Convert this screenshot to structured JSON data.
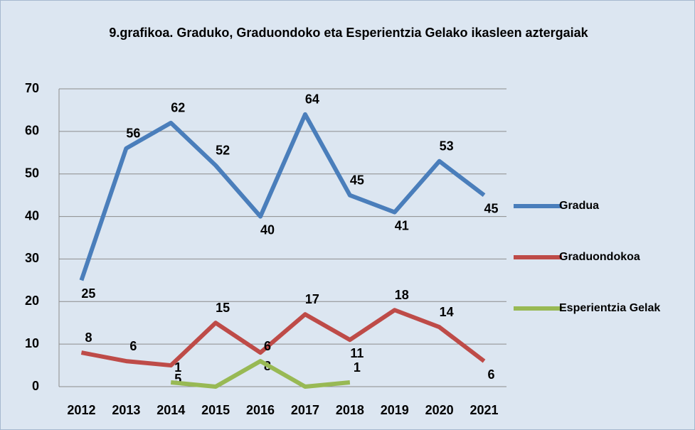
{
  "chart_data": {
    "type": "line",
    "title": "9.grafikoa. Graduko, Graduondoko eta Esperientzia Gelako ikasleen aztergaiak",
    "categories": [
      "2012",
      "2013",
      "2014",
      "2015",
      "2016",
      "2017",
      "2018",
      "2019",
      "2020",
      "2021"
    ],
    "series": [
      {
        "name": "Gradua",
        "color": "#4a7ebb",
        "values": [
          25,
          56,
          62,
          52,
          40,
          64,
          45,
          41,
          53,
          45
        ]
      },
      {
        "name": "Graduondokoa",
        "color": "#be4b48",
        "values": [
          8,
          6,
          5,
          15,
          8,
          17,
          11,
          18,
          14,
          6
        ]
      },
      {
        "name": "Esperientzia Gelak",
        "color": "#98b954",
        "values": [
          null,
          null,
          1,
          0,
          6,
          0,
          1,
          null,
          null,
          null
        ],
        "value_labels": [
          null,
          null,
          "1",
          null,
          "6",
          null,
          "1",
          null,
          null,
          null
        ]
      }
    ],
    "ylim": [
      0,
      70
    ],
    "yticks": [
      0,
      10,
      20,
      30,
      40,
      50,
      60,
      70
    ],
    "grid": true,
    "legend": "right"
  }
}
